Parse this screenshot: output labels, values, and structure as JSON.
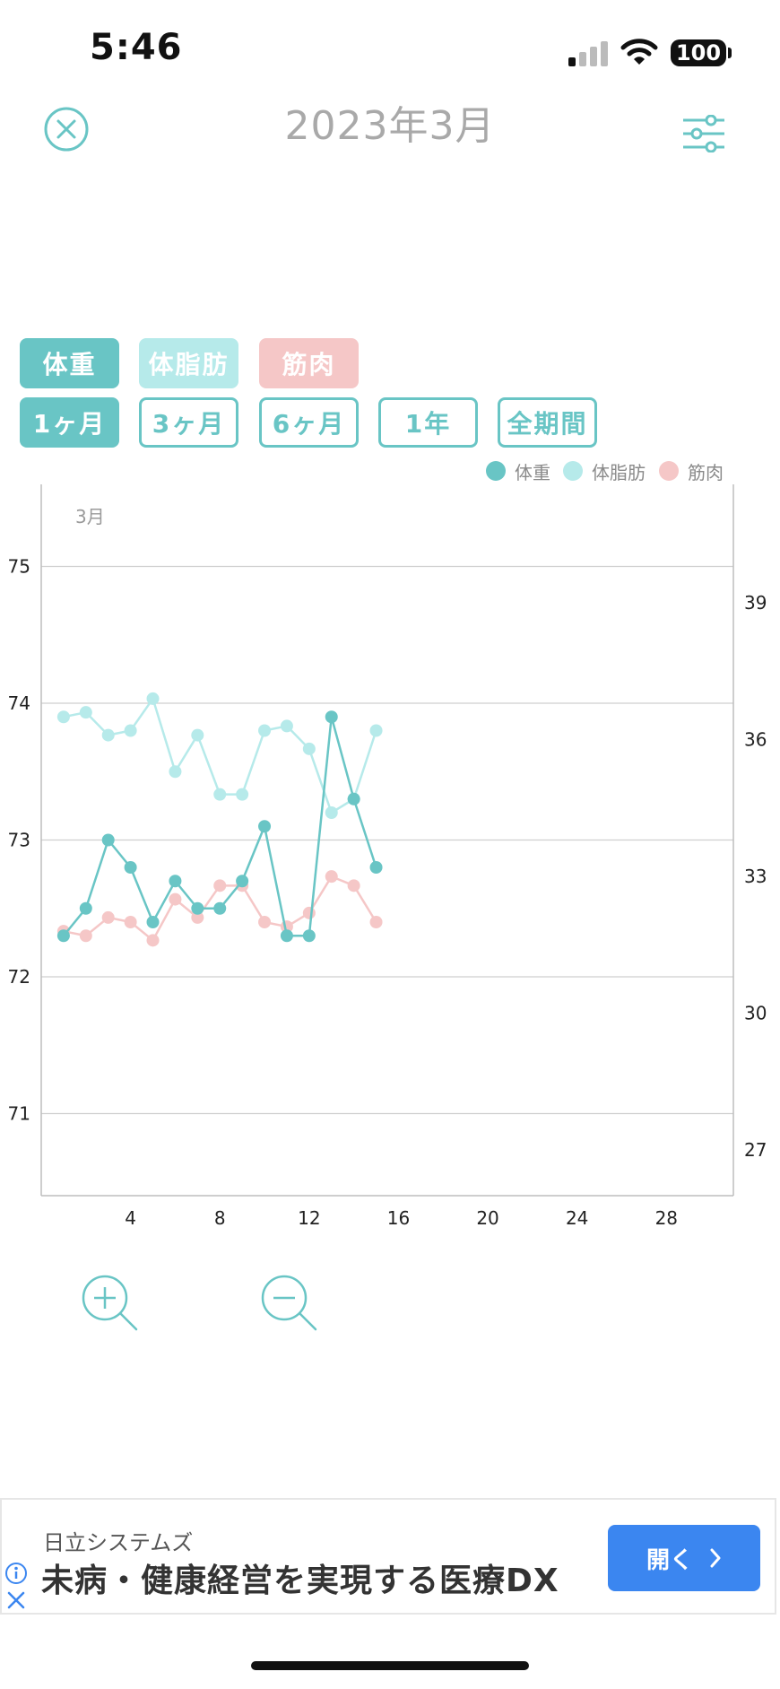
{
  "status_bar": {
    "time": "5:46",
    "battery": "100"
  },
  "header": {
    "title": "2023年3月"
  },
  "metric_tabs": [
    {
      "label": "体重",
      "color": "#69c5c5"
    },
    {
      "label": "体脂肪",
      "color": "#b6eaea"
    },
    {
      "label": "筋肉",
      "color": "#f5c7c7"
    }
  ],
  "period_tabs": [
    {
      "label": "1ヶ月",
      "selected": true
    },
    {
      "label": "3ヶ月",
      "selected": false
    },
    {
      "label": "6ヶ月",
      "selected": false
    },
    {
      "label": "1年",
      "selected": false
    },
    {
      "label": "全期間",
      "selected": false
    }
  ],
  "legend": [
    {
      "label": "体重",
      "color": "#69c5c5"
    },
    {
      "label": "体脂肪",
      "color": "#b6eaea"
    },
    {
      "label": "筋肉",
      "color": "#f5c7c7"
    }
  ],
  "chart_data": {
    "type": "line",
    "month_label": "3月",
    "x_ticks": [
      4,
      8,
      12,
      16,
      20,
      24,
      28
    ],
    "xlim": [
      0,
      31
    ],
    "left_axis": {
      "ticks": [
        75,
        74,
        73,
        72,
        71
      ],
      "range": [
        70.4,
        75.6
      ]
    },
    "right_axis": {
      "ticks": [
        39,
        36,
        33,
        30,
        27
      ],
      "range": [
        26.0,
        41.6
      ]
    },
    "grid": true,
    "legend_position": "top-right",
    "series": [
      {
        "name": "体重",
        "axis": "left",
        "color": "#69c5c5",
        "x": [
          1,
          2,
          3,
          4,
          5,
          6,
          7,
          8,
          9,
          10,
          11,
          12,
          13,
          14,
          15
        ],
        "values": [
          72.3,
          72.5,
          73.0,
          72.8,
          72.4,
          72.7,
          72.5,
          72.5,
          72.7,
          73.1,
          72.3,
          72.3,
          73.9,
          73.3,
          72.8
        ]
      },
      {
        "name": "体脂肪",
        "axis": "right",
        "color": "#b6eaea",
        "x": [
          1,
          2,
          3,
          4,
          5,
          6,
          7,
          8,
          9,
          10,
          11,
          12,
          13,
          14,
          15
        ],
        "values": [
          36.5,
          36.6,
          36.1,
          36.2,
          36.9,
          35.3,
          36.1,
          34.8,
          34.8,
          36.2,
          36.3,
          35.8,
          34.4,
          34.7,
          36.2
        ]
      },
      {
        "name": "筋肉",
        "axis": "right",
        "color": "#f5c7c7",
        "x": [
          1,
          2,
          3,
          4,
          5,
          6,
          7,
          8,
          9,
          10,
          11,
          12,
          13,
          14,
          15
        ],
        "values": [
          31.8,
          31.7,
          32.1,
          32.0,
          31.6,
          32.5,
          32.1,
          32.8,
          32.8,
          32.0,
          31.9,
          32.2,
          33.0,
          32.8,
          32.0
        ]
      }
    ]
  },
  "zoom": {
    "zoom_in_icon": "zoom-in-icon",
    "zoom_out_icon": "zoom-out-icon"
  },
  "ad": {
    "sponsor": "日立システムズ",
    "headline": "未病・健康経営を実現する医療DX",
    "button_label": "開く"
  }
}
